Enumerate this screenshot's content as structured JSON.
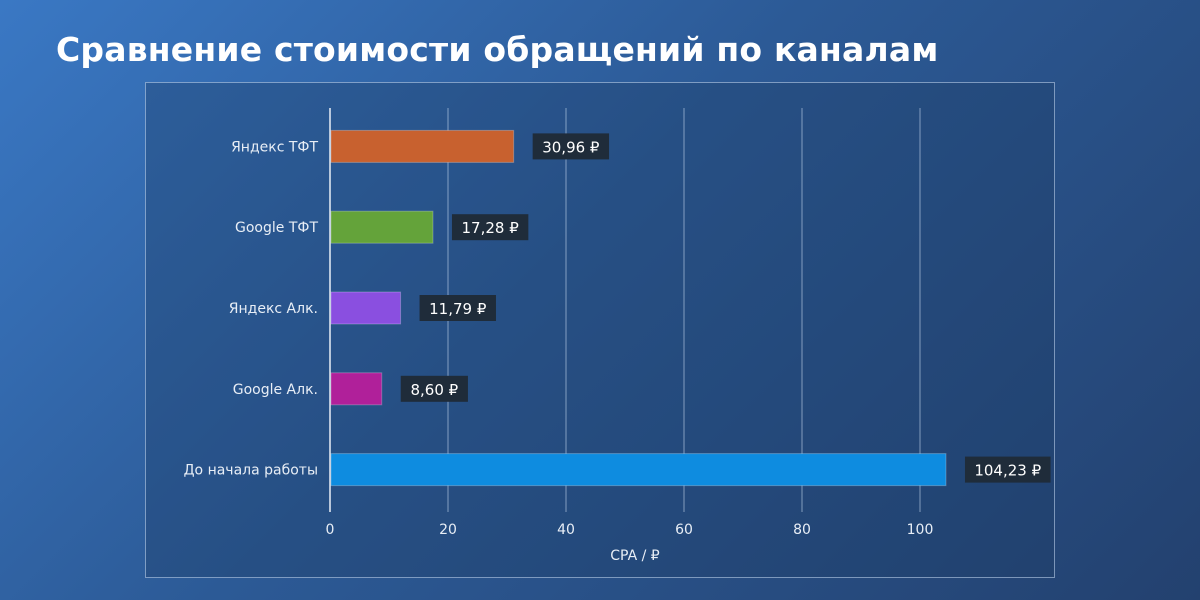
{
  "title": "Сравнение стоимости обращений по каналам",
  "chart_data": {
    "type": "bar",
    "orientation": "horizontal",
    "title": "Сравнение стоимости обращений по каналам",
    "xlabel": "CPA / ₽",
    "ylabel": "",
    "xlim": [
      0,
      105
    ],
    "xticks": [
      0,
      20,
      40,
      60,
      80,
      100
    ],
    "grid": true,
    "categories": [
      "Яндекс ТФТ",
      "Google ТФТ",
      "Яндекс Алк.",
      "Google Алк.",
      "До начала работы"
    ],
    "values": [
      30.96,
      17.28,
      11.79,
      8.6,
      104.23
    ],
    "value_labels": [
      "30,96 ₽",
      "17,28 ₽",
      "11,79 ₽",
      "8,60 ₽",
      "104,23 ₽"
    ],
    "colors": [
      "#c8612f",
      "#64a33a",
      "#8a4fe0",
      "#b0209a",
      "#0e8ce0"
    ]
  }
}
